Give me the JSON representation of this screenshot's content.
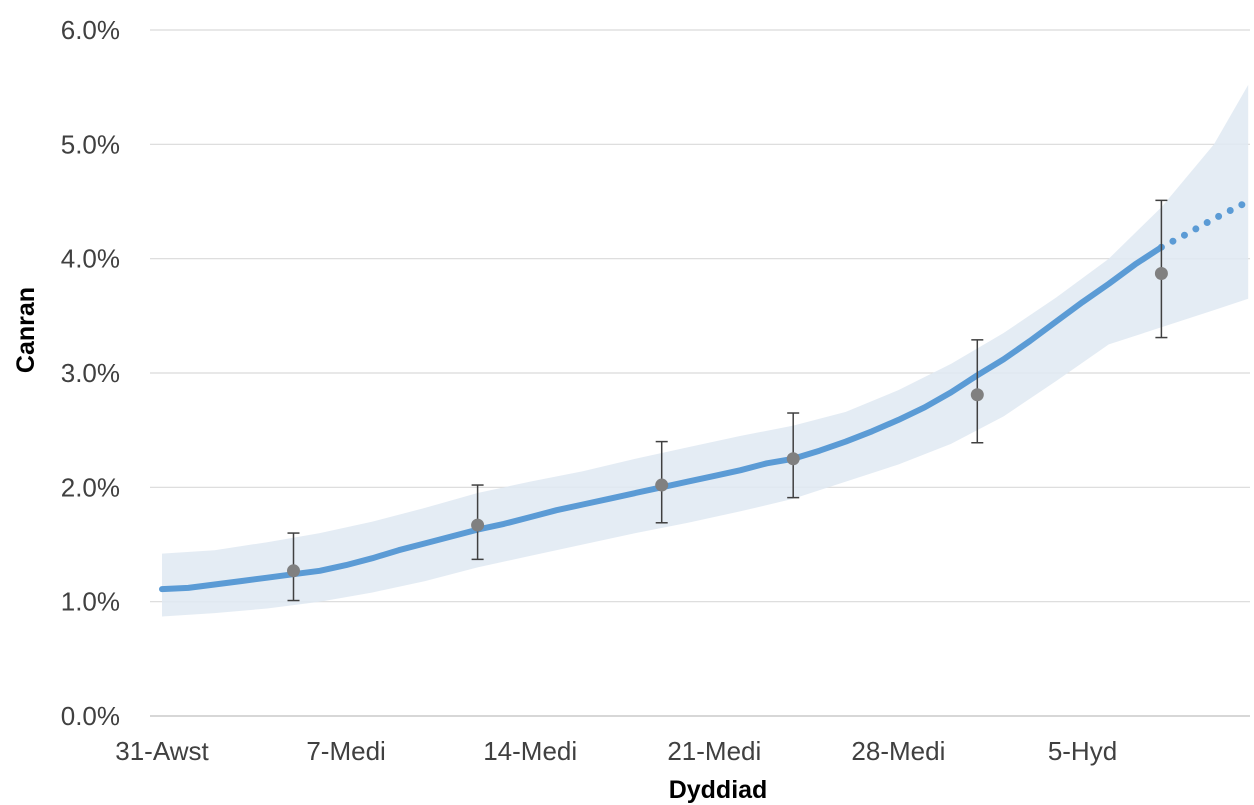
{
  "chart_data": {
    "type": "line",
    "xlabel": "Dyddiad",
    "ylabel": "Canran",
    "x_tick_labels": [
      "31-Awst",
      "7-Medi",
      "14-Medi",
      "21-Medi",
      "28-Medi",
      "5-Hyd"
    ],
    "x_tick_days": [
      0,
      7,
      14,
      21,
      28,
      35
    ],
    "y_tick_labels": [
      "0.0%",
      "1.0%",
      "2.0%",
      "3.0%",
      "4.0%",
      "5.0%",
      "6.0%"
    ],
    "ylim": [
      0,
      6
    ],
    "xlim": [
      0,
      41.3
    ],
    "grid": "horizontal",
    "colors": {
      "line": "#5b9bd5",
      "band": "#dfe9f2",
      "marker": "#808080",
      "error_bar": "#404040",
      "grid": "#d9d9d9"
    },
    "series": [
      {
        "type": "line",
        "x": [
          0,
          1,
          2,
          3,
          4,
          5,
          6,
          7,
          8,
          9,
          10,
          11,
          12,
          13,
          14,
          15,
          16,
          17,
          18,
          19,
          20,
          21,
          22,
          23,
          24,
          25,
          26,
          27,
          28,
          29,
          30,
          31,
          32,
          33,
          34,
          35,
          36,
          37,
          38
        ],
        "y": [
          1.11,
          1.12,
          1.15,
          1.18,
          1.21,
          1.24,
          1.27,
          1.32,
          1.38,
          1.45,
          1.51,
          1.57,
          1.63,
          1.68,
          1.74,
          1.8,
          1.85,
          1.9,
          1.95,
          2.0,
          2.05,
          2.1,
          2.15,
          2.21,
          2.25,
          2.32,
          2.4,
          2.49,
          2.59,
          2.7,
          2.83,
          2.98,
          3.12,
          3.28,
          3.45,
          3.62,
          3.78,
          3.95,
          4.1
        ]
      },
      {
        "type": "line",
        "style": "dotted",
        "x": [
          38,
          39,
          40,
          41.3
        ],
        "y": [
          4.1,
          4.22,
          4.35,
          4.5
        ]
      }
    ],
    "band": {
      "x": [
        0,
        2,
        4,
        6,
        8,
        10,
        12,
        14,
        16,
        18,
        20,
        22,
        24,
        26,
        28,
        30,
        32,
        34,
        36,
        38,
        40,
        41.3
      ],
      "upper": [
        1.42,
        1.45,
        1.52,
        1.6,
        1.7,
        1.82,
        1.95,
        2.05,
        2.14,
        2.25,
        2.35,
        2.45,
        2.54,
        2.66,
        2.85,
        3.08,
        3.35,
        3.66,
        4.0,
        4.45,
        5.0,
        5.52
      ],
      "lower": [
        0.87,
        0.9,
        0.94,
        1.0,
        1.08,
        1.18,
        1.3,
        1.4,
        1.5,
        1.6,
        1.69,
        1.79,
        1.9,
        2.05,
        2.2,
        2.38,
        2.62,
        2.93,
        3.25,
        3.4,
        3.55,
        3.65
      ]
    },
    "points": [
      {
        "x": 5,
        "y": 1.27,
        "err_low": 1.01,
        "err_high": 1.6
      },
      {
        "x": 12,
        "y": 1.67,
        "err_low": 1.37,
        "err_high": 2.02
      },
      {
        "x": 19,
        "y": 2.02,
        "err_low": 1.69,
        "err_high": 2.4
      },
      {
        "x": 24,
        "y": 2.25,
        "err_low": 1.91,
        "err_high": 2.65
      },
      {
        "x": 31,
        "y": 2.81,
        "err_low": 2.39,
        "err_high": 3.29
      },
      {
        "x": 38,
        "y": 3.87,
        "err_low": 3.31,
        "err_high": 4.51
      }
    ]
  }
}
